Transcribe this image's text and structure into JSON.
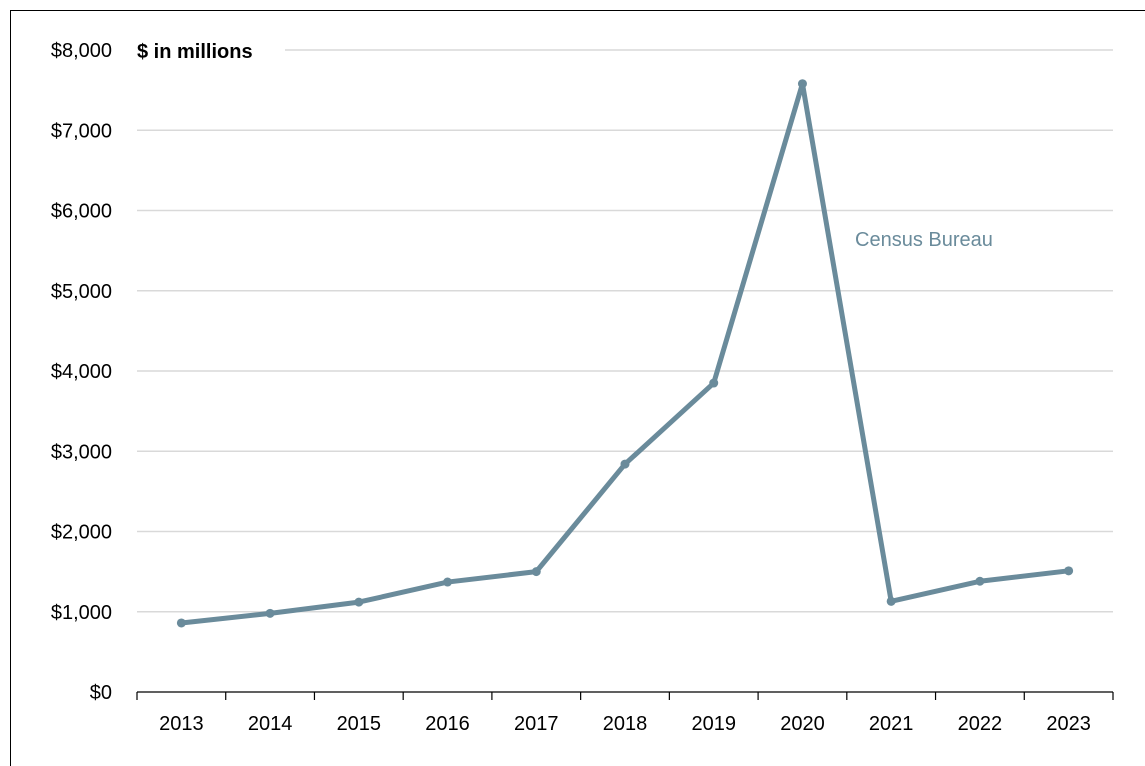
{
  "chart_data": {
    "type": "line",
    "unit_label": "$ in millions",
    "x": [
      "2013",
      "2014",
      "2015",
      "2016",
      "2017",
      "2018",
      "2019",
      "2020",
      "2021",
      "2022",
      "2023"
    ],
    "series": [
      {
        "name": "Census Bureau",
        "values": [
          860,
          980,
          1120,
          1370,
          1500,
          2840,
          3850,
          7580,
          1130,
          1380,
          1510
        ],
        "color": "#6a8b9b"
      }
    ],
    "ylim": [
      0,
      8000
    ],
    "yticks": [
      0,
      1000,
      2000,
      3000,
      4000,
      5000,
      6000,
      7000,
      8000
    ],
    "ytick_labels": [
      "$0",
      "$1,000",
      "$2,000",
      "$3,000",
      "$4,000",
      "$5,000",
      "$6,000",
      "$7,000",
      "$8,000"
    ],
    "grid": true,
    "gridline_color": "#d9d9d9"
  }
}
